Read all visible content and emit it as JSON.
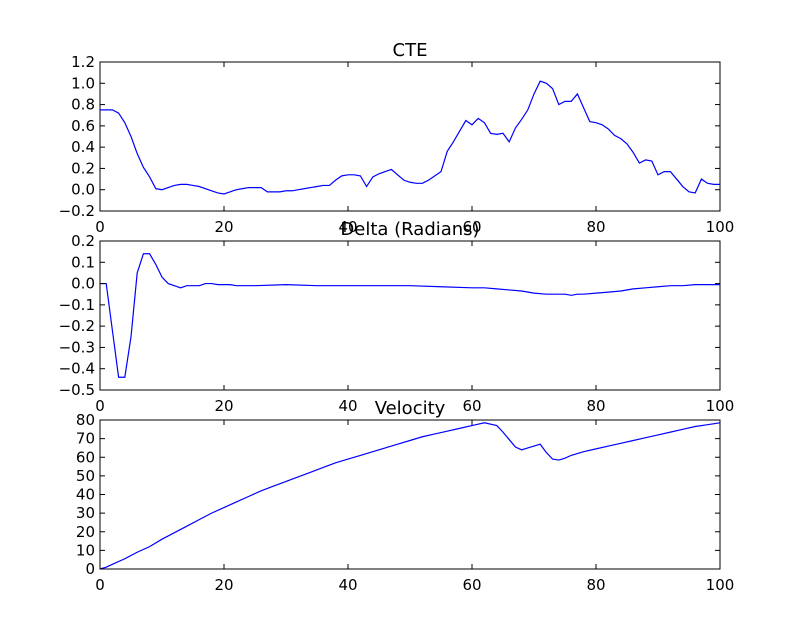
{
  "colors": {
    "line": "#0000ff",
    "axes": "#000000",
    "background": "#ffffff"
  },
  "chart_data": [
    {
      "type": "line",
      "title": "CTE",
      "xlabel": "",
      "ylabel": "",
      "xlim": [
        0,
        100
      ],
      "ylim": [
        -0.2,
        1.2
      ],
      "x_ticks": [
        0,
        20,
        40,
        60,
        80,
        100
      ],
      "x_tick_labels": [
        "0",
        "20",
        "40",
        "60",
        "80",
        "100"
      ],
      "y_ticks": [
        -0.2,
        0,
        0.2,
        0.4,
        0.6,
        0.8,
        1.0,
        1.2
      ],
      "y_tick_labels": [
        "−0.2",
        "0.0",
        "0.2",
        "0.4",
        "0.6",
        "0.8",
        "1.0",
        "1.2"
      ],
      "grid": false,
      "series": [
        {
          "x": [
            0,
            1,
            2,
            3,
            4,
            5,
            6,
            7,
            8,
            9,
            10,
            11,
            12,
            13,
            14,
            15,
            16,
            17,
            18,
            19,
            20,
            21,
            22,
            23,
            24,
            25,
            26,
            27,
            28,
            29,
            30,
            31,
            32,
            33,
            34,
            35,
            36,
            37,
            38,
            39,
            40,
            41,
            42,
            43,
            44,
            45,
            46,
            47,
            48,
            49,
            50,
            51,
            52,
            53,
            54,
            55,
            56,
            57,
            58,
            59,
            60,
            61,
            62,
            63,
            64,
            65,
            66,
            67,
            68,
            69,
            70,
            71,
            72,
            73,
            74,
            75,
            76,
            77,
            78,
            79,
            80,
            81,
            82,
            83,
            84,
            85,
            86,
            87,
            88,
            89,
            90,
            91,
            92,
            93,
            94,
            95,
            96,
            97,
            98,
            99,
            100
          ],
          "y": [
            0.75,
            0.75,
            0.75,
            0.72,
            0.63,
            0.5,
            0.34,
            0.21,
            0.12,
            0.01,
            0.0,
            0.02,
            0.04,
            0.05,
            0.05,
            0.04,
            0.03,
            0.01,
            -0.01,
            -0.03,
            -0.04,
            -0.02,
            0.0,
            0.01,
            0.02,
            0.02,
            0.02,
            -0.02,
            -0.02,
            -0.02,
            -0.01,
            -0.01,
            0.0,
            0.01,
            0.02,
            0.03,
            0.04,
            0.04,
            0.09,
            0.13,
            0.14,
            0.14,
            0.13,
            0.03,
            0.12,
            0.15,
            0.17,
            0.19,
            0.14,
            0.09,
            0.07,
            0.06,
            0.06,
            0.09,
            0.13,
            0.17,
            0.36,
            0.45,
            0.55,
            0.65,
            0.61,
            0.67,
            0.63,
            0.53,
            0.52,
            0.53,
            0.45,
            0.58,
            0.66,
            0.75,
            0.9,
            1.02,
            1.0,
            0.95,
            0.8,
            0.83,
            0.83,
            0.9,
            0.77,
            0.64,
            0.63,
            0.61,
            0.57,
            0.51,
            0.48,
            0.43,
            0.35,
            0.25,
            0.28,
            0.27,
            0.14,
            0.17,
            0.17,
            0.1,
            0.03,
            -0.02,
            -0.03,
            0.1,
            0.06,
            0.05,
            0.05
          ]
        }
      ]
    },
    {
      "type": "line",
      "title": "Delta (Radians)",
      "xlabel": "",
      "ylabel": "",
      "xlim": [
        0,
        100
      ],
      "ylim": [
        -0.5,
        0.2
      ],
      "x_ticks": [
        0,
        20,
        40,
        60,
        80,
        100
      ],
      "x_tick_labels": [
        "0",
        "20",
        "40",
        "60",
        "80",
        "100"
      ],
      "y_ticks": [
        -0.5,
        -0.4,
        -0.3,
        -0.2,
        -0.1,
        0,
        0.1,
        0.2
      ],
      "y_tick_labels": [
        "−0.5",
        "−0.4",
        "−0.3",
        "−0.2",
        "−0.1",
        "0.0",
        "0.1",
        "0.2"
      ],
      "grid": false,
      "series": [
        {
          "x": [
            0,
            1,
            2,
            3,
            4,
            5,
            6,
            7,
            8,
            9,
            10,
            11,
            12,
            13,
            14,
            15,
            16,
            17,
            18,
            19,
            20,
            21,
            22,
            25,
            30,
            35,
            40,
            45,
            50,
            55,
            60,
            62,
            64,
            66,
            68,
            70,
            72,
            74,
            75,
            76,
            77,
            78,
            80,
            82,
            84,
            86,
            88,
            90,
            92,
            94,
            96,
            98,
            100
          ],
          "y": [
            0.0,
            0.0,
            -0.22,
            -0.44,
            -0.44,
            -0.25,
            0.05,
            0.14,
            0.14,
            0.09,
            0.03,
            0.0,
            -0.01,
            -0.02,
            -0.01,
            -0.01,
            -0.01,
            0.0,
            0.0,
            -0.005,
            -0.005,
            -0.005,
            -0.01,
            -0.01,
            -0.005,
            -0.01,
            -0.01,
            -0.01,
            -0.01,
            -0.015,
            -0.02,
            -0.02,
            -0.025,
            -0.03,
            -0.035,
            -0.045,
            -0.05,
            -0.05,
            -0.05,
            -0.055,
            -0.05,
            -0.05,
            -0.045,
            -0.04,
            -0.035,
            -0.025,
            -0.02,
            -0.015,
            -0.01,
            -0.01,
            -0.005,
            -0.005,
            -0.005
          ]
        }
      ]
    },
    {
      "type": "line",
      "title": "Velocity",
      "xlabel": "",
      "ylabel": "",
      "xlim": [
        0,
        100
      ],
      "ylim": [
        0,
        80
      ],
      "x_ticks": [
        0,
        20,
        40,
        60,
        80,
        100
      ],
      "x_tick_labels": [
        "0",
        "20",
        "40",
        "60",
        "80",
        "100"
      ],
      "y_ticks": [
        0,
        10,
        20,
        30,
        40,
        50,
        60,
        70,
        80
      ],
      "y_tick_labels": [
        "0",
        "10",
        "20",
        "30",
        "40",
        "50",
        "60",
        "70",
        "80"
      ],
      "grid": false,
      "series": [
        {
          "x": [
            0,
            1,
            2,
            4,
            6,
            8,
            10,
            12,
            14,
            16,
            18,
            20,
            22,
            24,
            26,
            28,
            30,
            32,
            34,
            36,
            38,
            40,
            42,
            44,
            46,
            48,
            50,
            52,
            54,
            56,
            58,
            60,
            62,
            64,
            65,
            66,
            67,
            68,
            69,
            70,
            71,
            72,
            73,
            74,
            75,
            76,
            78,
            80,
            82,
            84,
            86,
            88,
            90,
            92,
            94,
            96,
            98,
            100
          ],
          "y": [
            0,
            1,
            2.5,
            5.5,
            9,
            12,
            16,
            19.5,
            23,
            26.5,
            30,
            33,
            36,
            39,
            42,
            44.5,
            47,
            49.5,
            52,
            54.5,
            57,
            59,
            61,
            63,
            65,
            67,
            69,
            71,
            72.5,
            74,
            75.5,
            77,
            78.5,
            77,
            73.5,
            69.5,
            65.5,
            64,
            65,
            66,
            67,
            62.5,
            59,
            58.5,
            59.5,
            61,
            63,
            64.5,
            66,
            67.5,
            69,
            70.5,
            72,
            73.5,
            75,
            76.5,
            77.5,
            78.5
          ]
        }
      ]
    }
  ]
}
